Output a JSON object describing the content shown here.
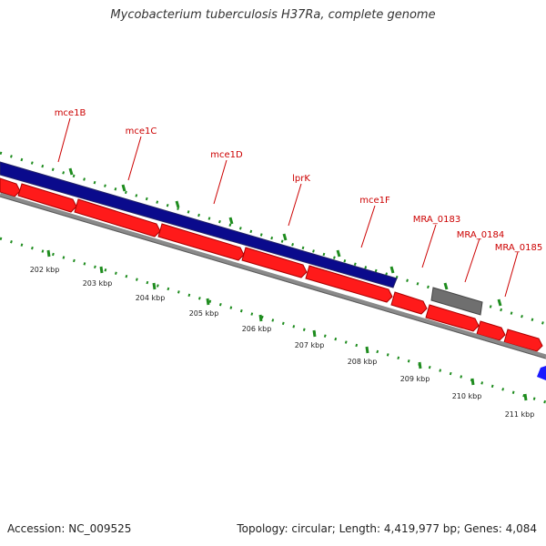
{
  "title": "Mycobacterium tuberculosis H37Ra, complete genome",
  "footer": {
    "accession": "Accession: NC_009525",
    "summary": "Topology: circular; Length: 4,419,977 bp; Genes: 4,084"
  },
  "colors": {
    "dark_blue_feature": "#0a0a8c",
    "red_gene": "#ff1a1a",
    "grey_gene": "#6f6f6f",
    "blue_gene": "#1a1aff",
    "backbone": "#8a8a8a",
    "tick": "#1e8c1e",
    "label": "#cc0000"
  },
  "gene_labels": [
    "mce1B",
    "mce1C",
    "mce1D",
    "lprK",
    "mce1F",
    "MRA_0183",
    "MRA_0184",
    "MRA_0185"
  ],
  "scale_labels": [
    "202 kbp",
    "203 kbp",
    "204 kbp",
    "205 kbp",
    "206 kbp",
    "207 kbp",
    "208 kbp",
    "209 kbp",
    "210 kbp",
    "211 kbp"
  ]
}
